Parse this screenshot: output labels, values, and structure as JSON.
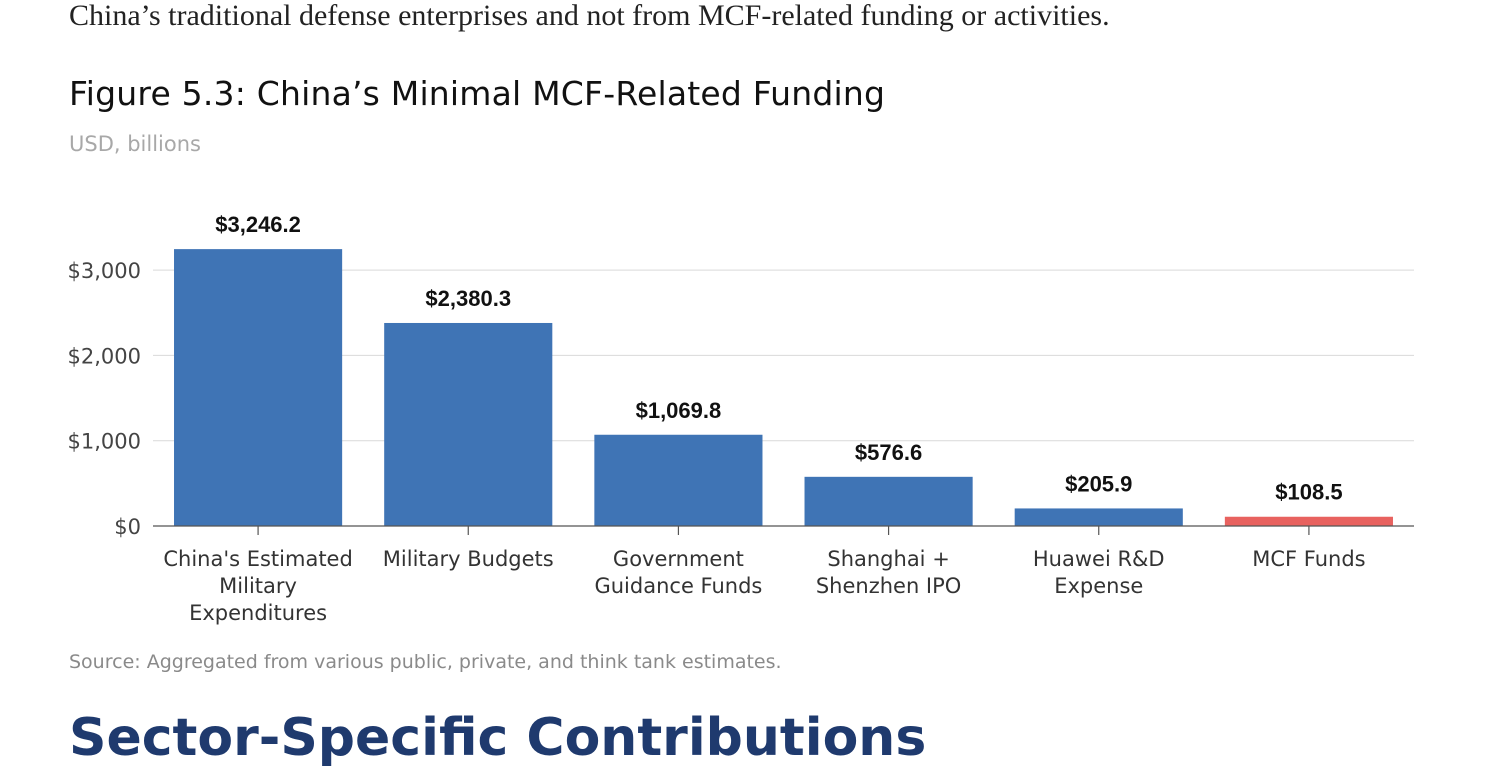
{
  "intro_text": "China’s traditional defense enterprises and not from MCF-related funding or activities.",
  "figure": {
    "title": "Figure 5.3: China’s Minimal MCF-Related Funding",
    "subtitle": "USD, billions",
    "source": "Source: Aggregated from various public, private, and think tank estimates."
  },
  "next_heading": "Sector-Specific Contributions",
  "chart_data": {
    "type": "bar",
    "title": "Figure 5.3: China’s Minimal MCF-Related Funding",
    "ylabel": "USD, billions",
    "xlabel": "",
    "categories": [
      [
        "China's Estimated",
        "Military",
        "Expenditures"
      ],
      [
        "Military Budgets"
      ],
      [
        "Government",
        "Guidance Funds"
      ],
      [
        "Shanghai +",
        "Shenzhen IPO"
      ],
      [
        "Huawei R&D",
        "Expense"
      ],
      [
        "MCF Funds"
      ]
    ],
    "values": [
      3246.2,
      2380.3,
      1069.8,
      576.6,
      205.9,
      108.5
    ],
    "value_labels": [
      "$3,246.2",
      "$2,380.3",
      "$1,069.8",
      "$576.6",
      "$205.9",
      "$108.5"
    ],
    "ylim": [
      0,
      3400
    ],
    "yticks": [
      0,
      1000,
      2000,
      3000
    ],
    "ytick_labels": [
      "$0",
      "$1,000",
      "$2,000",
      "$3,000"
    ],
    "grid": true,
    "colors": {
      "bar": "#3f74b5",
      "highlight": "#e8625f",
      "highlight_index": 5,
      "gridline": "#d9d9d9",
      "axis": "#555555"
    }
  }
}
